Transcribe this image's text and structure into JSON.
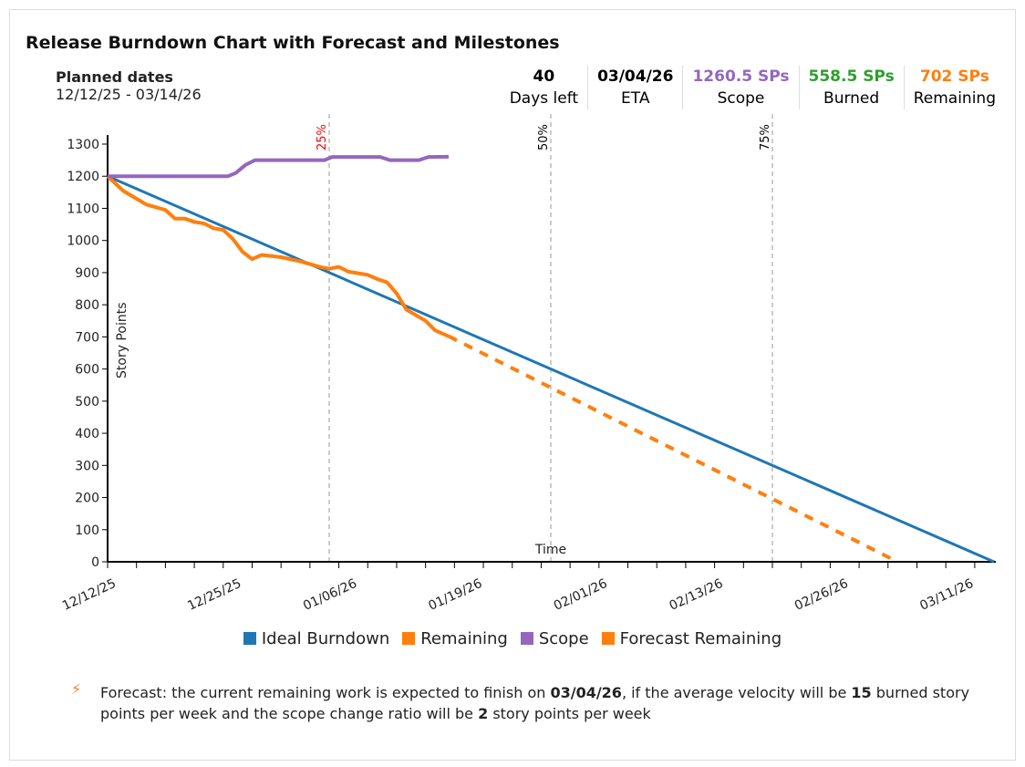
{
  "title": "Release Burndown Chart with Forecast and Milestones",
  "planned": {
    "label": "Planned dates",
    "value": "12/12/25 - 03/14/26"
  },
  "stats": [
    {
      "value": "40",
      "label": "Days left",
      "color": "#111111"
    },
    {
      "value": "03/04/26",
      "label": "ETA",
      "color": "#111111"
    },
    {
      "value": "1260.5 SPs",
      "label": "Scope",
      "color": "#9467bd"
    },
    {
      "value": "558.5 SPs",
      "label": "Burned",
      "color": "#2ca02c"
    },
    {
      "value": "702 SPs",
      "label": "Remaining",
      "color": "#ff7f0e"
    }
  ],
  "note": {
    "icon": "lightning-icon",
    "p1": "Forecast: the current remaining work is expected to finish on ",
    "eta": "03/04/26",
    "p2": ", if the average velocity will be ",
    "velocity": "15",
    "p3": " burned story points per week and the scope change ratio will be ",
    "scope_ratio": "2",
    "p4": " story points per week"
  },
  "chart_data": {
    "type": "line",
    "xlabel": "Time",
    "ylabel": "Story Points",
    "x_range": [
      "12/12/25",
      "03/14/26"
    ],
    "ylim": [
      0,
      1300
    ],
    "yticks": [
      0,
      100,
      200,
      300,
      400,
      500,
      600,
      700,
      800,
      900,
      1000,
      1100,
      1200,
      1300
    ],
    "xtick_labels": [
      "12/12/25",
      "12/25/25",
      "01/06/26",
      "01/19/26",
      "02/01/26",
      "02/13/26",
      "02/26/26",
      "03/11/26"
    ],
    "xtick_days": [
      0,
      13,
      25,
      38,
      51,
      63,
      76,
      89
    ],
    "legend_position": "bottom",
    "milestones": [
      {
        "label": "25%",
        "date": "01/04/26",
        "day": 23,
        "color": "#ff0000"
      },
      {
        "label": "50%",
        "date": "01/27/26",
        "day": 46,
        "color": "#000000"
      },
      {
        "label": "75%",
        "date": "02/19/26",
        "day": 69,
        "color": "#000000"
      }
    ],
    "series": [
      {
        "name": "Ideal Burndown",
        "color": "#1f77b4",
        "style": "solid",
        "points": [
          [
            0,
            1200
          ],
          [
            92,
            0
          ]
        ]
      },
      {
        "name": "Remaining",
        "color": "#ff7f0e",
        "style": "solid",
        "points": [
          [
            0,
            1200
          ],
          [
            1.6,
            1155
          ],
          [
            3,
            1130
          ],
          [
            4,
            1112
          ],
          [
            6,
            1095
          ],
          [
            7,
            1068
          ],
          [
            8,
            1068
          ],
          [
            9,
            1058
          ],
          [
            10,
            1053
          ],
          [
            11,
            1038
          ],
          [
            12,
            1033
          ],
          [
            13,
            1005
          ],
          [
            14,
            965
          ],
          [
            15,
            942
          ],
          [
            16,
            955
          ],
          [
            18,
            948
          ],
          [
            20,
            935
          ],
          [
            22,
            918
          ],
          [
            23,
            912
          ],
          [
            24,
            918
          ],
          [
            25,
            903
          ],
          [
            27,
            893
          ],
          [
            28,
            880
          ],
          [
            29,
            870
          ],
          [
            30,
            835
          ],
          [
            31,
            785
          ],
          [
            33,
            750
          ],
          [
            34,
            720
          ],
          [
            35.4,
            702
          ]
        ]
      },
      {
        "name": "Scope",
        "color": "#9467bd",
        "style": "solid",
        "points": [
          [
            0,
            1200
          ],
          [
            12.5,
            1200
          ],
          [
            13.3,
            1210
          ],
          [
            14.3,
            1235
          ],
          [
            15.3,
            1250
          ],
          [
            22.5,
            1250
          ],
          [
            23.3,
            1260
          ],
          [
            28.3,
            1260
          ],
          [
            29.3,
            1250
          ],
          [
            32.3,
            1250
          ],
          [
            33.3,
            1260
          ],
          [
            35.4,
            1260.5
          ]
        ]
      },
      {
        "name": "Forecast Remaining",
        "color": "#ff7f0e",
        "style": "dashed",
        "points": [
          [
            35.4,
            702
          ],
          [
            82,
            0
          ]
        ]
      }
    ]
  }
}
